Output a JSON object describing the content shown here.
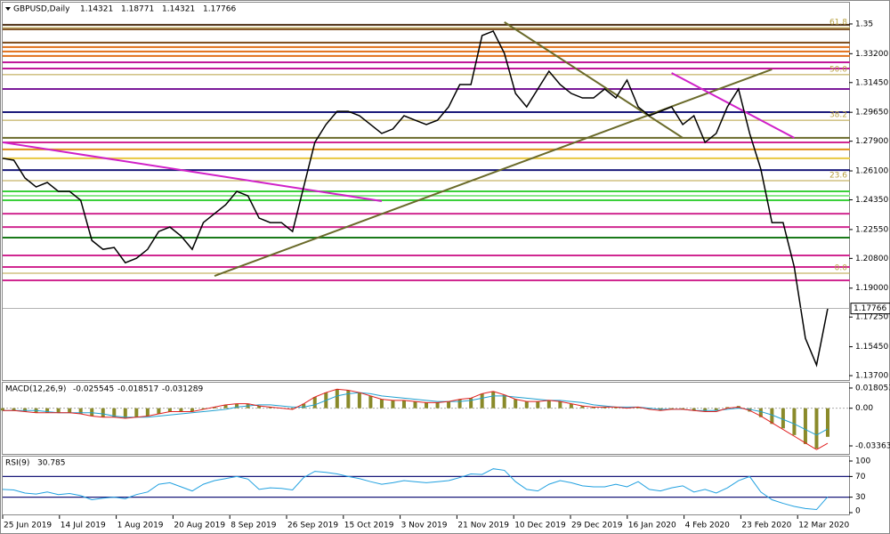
{
  "chart_data": {
    "type": "price-line",
    "symbol": "GBPUSD,Daily",
    "ohlc": [
      1.14321,
      1.18771,
      1.14321,
      1.17766
    ],
    "x_labels": [
      "25 Jun 2019",
      "14 Jul 2019",
      "1 Aug 2019",
      "20 Aug 2019",
      "8 Sep 2019",
      "26 Sep 2019",
      "15 Oct 2019",
      "3 Nov 2019",
      "21 Nov 2019",
      "10 Dec 2019",
      "29 Dec 2019",
      "16 Jan 2020",
      "4 Feb 2020",
      "23 Feb 2020",
      "12 Mar 2020"
    ],
    "series": [
      {
        "name": "GBPUSD",
        "color": "#000000",
        "values": [
          1.2686,
          1.2675,
          1.2567,
          1.2513,
          1.254,
          1.2486,
          1.2486,
          1.2432,
          1.2189,
          1.2135,
          1.2146,
          1.2054,
          1.2081,
          1.2135,
          1.2243,
          1.227,
          1.2216,
          1.2135,
          1.2297,
          1.2351,
          1.2405,
          1.2486,
          1.2459,
          1.2324,
          1.2297,
          1.2297,
          1.2243,
          1.2513,
          1.2783,
          1.2891,
          1.2971,
          1.2971,
          1.2944,
          1.2891,
          1.2837,
          1.2864,
          1.2944,
          1.2917,
          1.2891,
          1.2917,
          1.2998,
          1.3133,
          1.3133,
          1.343,
          1.3457,
          1.3322,
          1.3079,
          1.2998,
          1.3106,
          1.3214,
          1.3133,
          1.3079,
          1.3052,
          1.3052,
          1.3106,
          1.3052,
          1.316,
          1.2998,
          1.2944,
          1.2971,
          1.2998,
          1.2891,
          1.2944,
          1.2783,
          1.2837,
          1.2998,
          1.3106,
          1.2837,
          1.2621,
          1.2297,
          1.2297,
          1.2028,
          1.1596,
          1.1434,
          1.17766
        ]
      }
    ],
    "ylim": [
      1.1338,
      1.3629
    ],
    "yticks": [
      1.35,
      {
        "value": 1.332,
        "label": "1.33200"
      },
      {
        "value": 1.3145,
        "label": "1.31450"
      },
      {
        "value": 1.2965,
        "label": "1.29650"
      },
      {
        "value": 1.279,
        "label": "1.27900"
      },
      {
        "value": 1.261,
        "label": "1.26100"
      },
      {
        "value": 1.2435,
        "label": "1.24350"
      },
      {
        "value": 1.2255,
        "label": "1.22550"
      },
      {
        "value": 1.208,
        "label": "1.20800"
      },
      {
        "value": 1.19,
        "label": "1.19000"
      },
      {
        "value": 1.1725,
        "label": "1.17250"
      },
      {
        "value": 1.1545,
        "label": "1.15450"
      },
      {
        "value": 1.137,
        "label": "1.13700"
      }
    ],
    "fib_color": "#b8a040",
    "fib_levels": [
      {
        "label": "61.8",
        "price": 1.3478
      },
      {
        "label": "50.0",
        "price": 1.3193
      },
      {
        "label": "38.2",
        "price": 1.2917
      },
      {
        "label": "23.6",
        "price": 1.2551
      },
      {
        "label": "0.0",
        "price": 1.199
      }
    ],
    "levels": [
      {
        "price": 1.3495,
        "color": "#4b2d12"
      },
      {
        "price": 1.3468,
        "color": "#7a4a1a"
      },
      {
        "price": 1.3387,
        "color": "#7a4a1a"
      },
      {
        "price": 1.336,
        "color": "#e0701a"
      },
      {
        "price": 1.3333,
        "color": "#e0701a"
      },
      {
        "price": 1.3306,
        "color": "#e0701a"
      },
      {
        "price": 1.3268,
        "color": "#c0189a"
      },
      {
        "price": 1.323,
        "color": "#c0189a"
      },
      {
        "price": 1.3106,
        "color": "#7a1a9a"
      },
      {
        "price": 1.2966,
        "color": "#1a1a7a"
      },
      {
        "price": 1.281,
        "color": "#6a6a2a"
      },
      {
        "price": 1.2783,
        "color": "#d02890"
      },
      {
        "price": 1.274,
        "color": "#e0901a"
      },
      {
        "price": 1.2686,
        "color": "#e8c840"
      },
      {
        "price": 1.2615,
        "color": "#1a1a7a"
      },
      {
        "price": 1.2486,
        "color": "#3ad03a"
      },
      {
        "price": 1.2459,
        "color": "#8ae88a"
      },
      {
        "price": 1.2432,
        "color": "#3ad03a"
      },
      {
        "price": 1.2351,
        "color": "#d02890"
      },
      {
        "price": 1.227,
        "color": "#d02890"
      },
      {
        "price": 1.2206,
        "color": "#1a7a1a"
      },
      {
        "price": 1.2098,
        "color": "#d02890"
      },
      {
        "price": 1.2028,
        "color": "#d02890"
      },
      {
        "price": 1.1947,
        "color": "#d02890"
      }
    ],
    "trendlines": [
      {
        "color": "#d020c8",
        "from": [
          0,
          1.2783
        ],
        "to": [
          34,
          1.2427
        ]
      },
      {
        "color": "#6a6a2a",
        "from": [
          19,
          1.1974
        ],
        "to": [
          69,
          1.3225
        ]
      },
      {
        "color": "#6a6a2a",
        "from": [
          45,
          1.3511
        ],
        "to": [
          61,
          1.281
        ]
      },
      {
        "color": "#d020c8",
        "from": [
          60,
          1.3203
        ],
        "to": [
          71,
          1.281
        ]
      }
    ],
    "macd": {
      "title": "MACD(12,26,9)",
      "readout": [
        -0.025545,
        -0.018517,
        -0.031289
      ],
      "ylim": [
        -0.0408,
        0.0228
      ],
      "yticks": [
        0.018053,
        {
          "value": 0,
          "label": "0.00"
        },
        -0.033639
      ],
      "histogram": {
        "color": "#8a8a2a",
        "values": [
          -0.002,
          -0.002,
          -0.003,
          -0.004,
          -0.004,
          -0.004,
          -0.004,
          -0.005,
          -0.007,
          -0.008,
          -0.008,
          -0.009,
          -0.008,
          -0.007,
          -0.005,
          -0.003,
          -0.003,
          -0.003,
          -0.001,
          0.001,
          0.003,
          0.004,
          0.004,
          0.002,
          0.001,
          0.0,
          -0.001,
          0.004,
          0.01,
          0.014,
          0.017,
          0.016,
          0.014,
          0.011,
          0.008,
          0.007,
          0.007,
          0.006,
          0.005,
          0.005,
          0.006,
          0.008,
          0.009,
          0.013,
          0.015,
          0.012,
          0.008,
          0.006,
          0.006,
          0.007,
          0.006,
          0.004,
          0.002,
          0.001,
          0.001,
          0.001,
          0.0,
          0.001,
          -0.001,
          -0.002,
          -0.001,
          -0.001,
          -0.002,
          -0.003,
          -0.002,
          0.001,
          0.002,
          -0.003,
          -0.008,
          -0.014,
          -0.018,
          -0.024,
          -0.032,
          -0.036,
          -0.025545
        ]
      },
      "signal": {
        "color": "#20a0d0",
        "values": [
          -0.002,
          -0.002,
          -0.002,
          -0.002,
          -0.003,
          -0.004,
          -0.004,
          -0.004,
          -0.004,
          -0.005,
          -0.007,
          -0.008,
          -0.008,
          -0.008,
          -0.007,
          -0.006,
          -0.005,
          -0.004,
          -0.003,
          -0.002,
          -0.001,
          0.001,
          0.002,
          0.003,
          0.003,
          0.002,
          0.001,
          0.001,
          0.003,
          0.007,
          0.011,
          0.013,
          0.014,
          0.013,
          0.011,
          0.01,
          0.009,
          0.008,
          0.007,
          0.006,
          0.006,
          0.006,
          0.007,
          0.009,
          0.011,
          0.011,
          0.01,
          0.009,
          0.008,
          0.007,
          0.007,
          0.006,
          0.005,
          0.003,
          0.002,
          0.001,
          0.001,
          0.001,
          0.0,
          -0.001,
          -0.001,
          -0.001,
          -0.002,
          -0.002,
          -0.002,
          -0.001,
          0.0,
          -0.001,
          -0.003,
          -0.006,
          -0.01,
          -0.014,
          -0.019,
          -0.024,
          -0.018517
        ]
      },
      "line": {
        "color": "#e02020",
        "values": [
          -0.002,
          -0.002,
          -0.003,
          -0.004,
          -0.004,
          -0.004,
          -0.004,
          -0.005,
          -0.007,
          -0.008,
          -0.008,
          -0.009,
          -0.008,
          -0.007,
          -0.005,
          -0.003,
          -0.003,
          -0.003,
          -0.001,
          0.001,
          0.003,
          0.004,
          0.004,
          0.002,
          0.001,
          0.0,
          -0.001,
          0.004,
          0.01,
          0.014,
          0.017,
          0.016,
          0.014,
          0.011,
          0.008,
          0.007,
          0.007,
          0.006,
          0.005,
          0.005,
          0.006,
          0.008,
          0.009,
          0.013,
          0.015,
          0.012,
          0.008,
          0.006,
          0.006,
          0.007,
          0.006,
          0.004,
          0.002,
          0.001,
          0.001,
          0.001,
          0.0,
          0.001,
          -0.001,
          -0.002,
          -0.001,
          -0.001,
          -0.002,
          -0.003,
          -0.003,
          0.0,
          0.001,
          -0.002,
          -0.007,
          -0.013,
          -0.019,
          -0.025,
          -0.031,
          -0.037,
          -0.031289
        ]
      }
    },
    "rsi": {
      "title": "RSI(9)",
      "readout": 30.785,
      "color": "#20a0e0",
      "ylim": [
        0,
        100
      ],
      "yticks": [
        100,
        70,
        30,
        0
      ],
      "levels": [
        70,
        30
      ],
      "values": [
        45,
        44,
        38,
        36,
        40,
        35,
        37,
        33,
        25,
        28,
        30,
        27,
        35,
        40,
        55,
        58,
        50,
        42,
        55,
        62,
        66,
        70,
        65,
        45,
        48,
        47,
        44,
        68,
        80,
        78,
        75,
        70,
        66,
        60,
        55,
        58,
        62,
        60,
        58,
        60,
        62,
        68,
        75,
        74,
        85,
        82,
        60,
        45,
        42,
        55,
        62,
        58,
        52,
        50,
        50,
        55,
        50,
        60,
        45,
        42,
        48,
        52,
        40,
        45,
        38,
        48,
        62,
        70,
        40,
        25,
        18,
        12,
        8,
        6,
        30.785
      ]
    }
  }
}
